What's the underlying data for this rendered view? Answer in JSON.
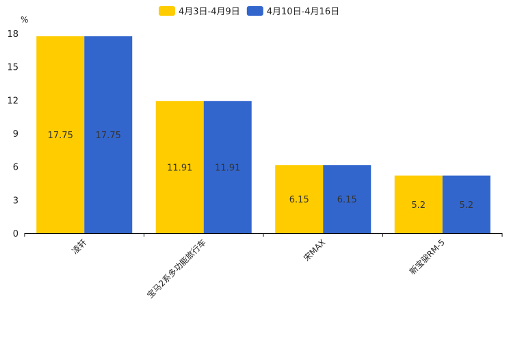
{
  "chart_data": {
    "type": "bar",
    "title": "",
    "xlabel": "",
    "ylabel": "%",
    "ylim": [
      0,
      18
    ],
    "yticks": [
      0,
      3,
      6,
      9,
      12,
      15,
      18
    ],
    "grid": false,
    "legend_position": "top-center",
    "categories": [
      "凌轩",
      "宝马2系多功能旅行车",
      "宋MAX",
      "新宝骏RM-5"
    ],
    "series": [
      {
        "name": "4月3日-4月9日",
        "color": "#FFCC00",
        "values": [
          17.75,
          11.91,
          6.15,
          5.2
        ],
        "labels": [
          "17.75",
          "11.91",
          "6.15",
          "5.2"
        ]
      },
      {
        "name": "4月10日-4月16日",
        "color": "#3366CC",
        "values": [
          17.75,
          11.91,
          6.15,
          5.2
        ],
        "labels": [
          "17.75",
          "11.91",
          "6.15",
          "5.2"
        ]
      }
    ]
  }
}
